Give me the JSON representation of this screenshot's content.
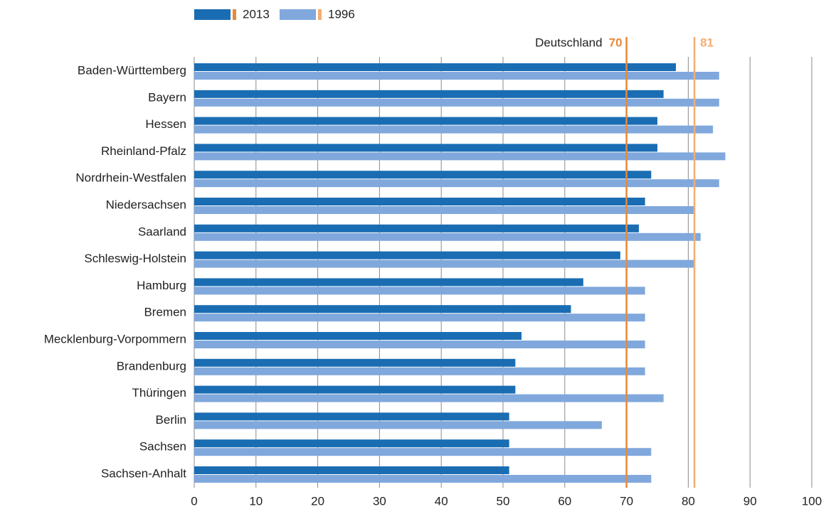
{
  "chart_data": {
    "type": "barh",
    "categories": [
      "Baden-Württemberg",
      "Bayern",
      "Hessen",
      "Rheinland-Pfalz",
      "Nordrhein-Westfalen",
      "Niedersachsen",
      "Saarland",
      "Schleswig-Holstein",
      "Hamburg",
      "Bremen",
      "Mecklenburg-Vorpommern",
      "Brandenburg",
      "Thüringen",
      "Berlin",
      "Sachsen",
      "Sachsen-Anhalt"
    ],
    "series": [
      {
        "name": "2013",
        "color": "#1a6db3",
        "values": [
          78,
          76,
          75,
          75,
          74,
          73,
          72,
          69,
          63,
          61,
          53,
          52,
          52,
          51,
          51,
          51
        ]
      },
      {
        "name": "1996",
        "color": "#80a8dc",
        "values": [
          85,
          85,
          84,
          86,
          85,
          81,
          82,
          81,
          73,
          73,
          73,
          73,
          76,
          66,
          74,
          74
        ]
      }
    ],
    "reference_lines": [
      {
        "label": "Deutschland",
        "value": 70,
        "color": "#e8883a"
      },
      {
        "value": 81,
        "color": "#f3ad72"
      }
    ],
    "xlim": [
      0,
      100
    ],
    "xticks": [
      0,
      10,
      20,
      30,
      40,
      50,
      60,
      70,
      80,
      90,
      100
    ],
    "grid": true
  }
}
